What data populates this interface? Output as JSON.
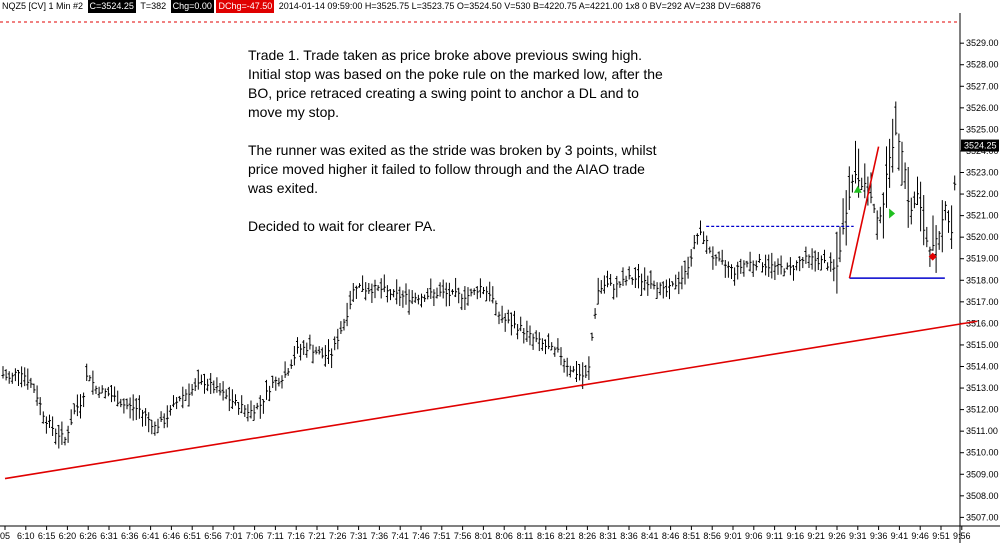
{
  "header": {
    "symbol": "NQZ5 [CV]  1 Min   #2",
    "close_box": "C=3524.25",
    "ticks_box": "T=382",
    "chg_box": "Chg=0.00",
    "dchg_box": "DChg=-47.50",
    "stats": "2014-01-14 09:59:00  H=3525.75  L=3523.75  O=3524.50  V=530  B=4220.75  A=4221.00  1x8 0  BV=292  AV=238  DV=68876"
  },
  "annotation": {
    "paragraphs": [
      "Trade 1.  Trade taken as price broke above previous swing high. Initial stop was based on the poke rule on the marked low, after the BO, price retraced creating a swing point to anchor a DL and to move my stop.",
      "The runner was exited as the stride was broken by 3 points, whilst price moved higher it failed to follow through and the AIAO trade was exited.",
      "Decided to wait for clearer PA."
    ]
  },
  "chart_data": {
    "type": "ohlc",
    "price_axis": {
      "min": 3506.6,
      "max": 3530.4,
      "ticks": [
        3507,
        3508,
        3509,
        3510,
        3511,
        3512,
        3513,
        3514,
        3515,
        3516,
        3517,
        3518,
        3519,
        3520,
        3521,
        3522,
        3523,
        3524,
        3525,
        3526,
        3527,
        3528,
        3529
      ],
      "format": "0.00"
    },
    "time_axis": {
      "labels": [
        "05",
        "6:10",
        "6:15",
        "6:20",
        "6:26",
        "6:31",
        "6:36",
        "6:41",
        "6:46",
        "6:51",
        "6:56",
        "7:01",
        "7:06",
        "7:11",
        "7:16",
        "7:21",
        "7:26",
        "7:31",
        "7:36",
        "7:41",
        "7:46",
        "7:51",
        "7:56",
        "8:01",
        "8:06",
        "8:11",
        "8:16",
        "8:21",
        "8:26",
        "8:31",
        "8:36",
        "8:41",
        "8:46",
        "8:51",
        "8:56",
        "9:01",
        "9:06",
        "9:11",
        "9:16",
        "9:21",
        "9:26",
        "9:31",
        "9:36",
        "9:41",
        "9:46",
        "9:51",
        "9:56"
      ]
    },
    "close_path": [
      [
        0,
        3513.7
      ],
      [
        10,
        3513.4
      ],
      [
        20,
        3513.9
      ],
      [
        35,
        3512.9
      ],
      [
        45,
        3511.6
      ],
      [
        55,
        3511.0
      ],
      [
        65,
        3510.6
      ],
      [
        75,
        3512.0
      ],
      [
        82,
        3512.4
      ],
      [
        88,
        3513.8
      ],
      [
        95,
        3513.0
      ],
      [
        110,
        3512.7
      ],
      [
        125,
        3512.2
      ],
      [
        140,
        3512.0
      ],
      [
        155,
        3511.2
      ],
      [
        165,
        3511.5
      ],
      [
        180,
        3512.6
      ],
      [
        195,
        3513.0
      ],
      [
        205,
        3513.3
      ],
      [
        220,
        3512.8
      ],
      [
        235,
        3512.3
      ],
      [
        250,
        3511.9
      ],
      [
        260,
        3512.2
      ],
      [
        272,
        3513.2
      ],
      [
        285,
        3513.6
      ],
      [
        298,
        3514.8
      ],
      [
        310,
        3514.9
      ],
      [
        322,
        3514.5
      ],
      [
        332,
        3514.6
      ],
      [
        340,
        3515.6
      ],
      [
        348,
        3516.6
      ],
      [
        355,
        3517.8
      ],
      [
        365,
        3517.6
      ],
      [
        380,
        3517.6
      ],
      [
        395,
        3517.3
      ],
      [
        410,
        3517.2
      ],
      [
        425,
        3517.3
      ],
      [
        440,
        3517.4
      ],
      [
        455,
        3517.3
      ],
      [
        470,
        3517.3
      ],
      [
        480,
        3517.7
      ],
      [
        490,
        3517.4
      ],
      [
        500,
        3516.3
      ],
      [
        510,
        3516.0
      ],
      [
        520,
        3515.8
      ],
      [
        530,
        3515.4
      ],
      [
        540,
        3515.1
      ],
      [
        550,
        3514.8
      ],
      [
        560,
        3514.6
      ],
      [
        570,
        3513.9
      ],
      [
        580,
        3513.6
      ],
      [
        588,
        3513.5
      ],
      [
        593,
        3515.8
      ],
      [
        598,
        3517.5
      ],
      [
        605,
        3517.8
      ],
      [
        615,
        3517.7
      ],
      [
        630,
        3518.1
      ],
      [
        645,
        3518.0
      ],
      [
        655,
        3517.9
      ],
      [
        665,
        3517.4
      ],
      [
        675,
        3517.8
      ],
      [
        685,
        3518.3
      ],
      [
        693,
        3519.4
      ],
      [
        698,
        3520.2
      ],
      [
        705,
        3519.9
      ],
      [
        715,
        3518.9
      ],
      [
        725,
        3518.7
      ],
      [
        735,
        3518.4
      ],
      [
        745,
        3518.8
      ],
      [
        760,
        3518.8
      ],
      [
        775,
        3518.6
      ],
      [
        790,
        3518.5
      ],
      [
        800,
        3518.9
      ],
      [
        810,
        3519.0
      ],
      [
        820,
        3518.9
      ],
      [
        830,
        3518.7
      ],
      [
        836,
        3518.4
      ],
      [
        842,
        3520.0
      ],
      [
        848,
        3521.8
      ],
      [
        855,
        3523.0
      ],
      [
        862,
        3522.5
      ],
      [
        870,
        3522.0
      ],
      [
        877,
        3520.7
      ],
      [
        883,
        3521.5
      ],
      [
        890,
        3524.0
      ],
      [
        897,
        3524.8
      ],
      [
        903,
        3524.0
      ],
      [
        910,
        3521.0
      ],
      [
        918,
        3522.0
      ],
      [
        925,
        3520.0
      ],
      [
        932,
        3519.4
      ],
      [
        940,
        3520.1
      ],
      [
        946,
        3521.8
      ],
      [
        951,
        3519.8
      ],
      [
        957,
        3524.2
      ]
    ],
    "annotations": {
      "swing_high": 3520.5,
      "swing_high_range": [
        "8:56",
        "9:29"
      ],
      "initial_stop": 3518.1,
      "initial_stop_range": [
        "9:28",
        "9:49"
      ],
      "trend_line": {
        "from": [
          "6:05",
          3508.8
        ],
        "to": [
          "9:58",
          3516.1
        ]
      },
      "stride_line": {
        "from": [
          "9:28",
          3518.1
        ],
        "to": [
          "9:36",
          3524.2
        ]
      },
      "entry_marker": {
        "time": "9:30",
        "price": 3522.2
      },
      "exit_marker": {
        "time": "9:38",
        "price": 3521.1
      },
      "ai_marker": {
        "time": "9:48",
        "price": 3519.1
      },
      "current_price": "3524.25"
    },
    "colors": {
      "bars": "#000000",
      "trend": "#e00000",
      "stop": "#0000cc",
      "swing": "#0000cc",
      "entry": "#20c020",
      "exit": "#20c020",
      "ai": "#e00000",
      "top_dash": "#e00000"
    }
  }
}
